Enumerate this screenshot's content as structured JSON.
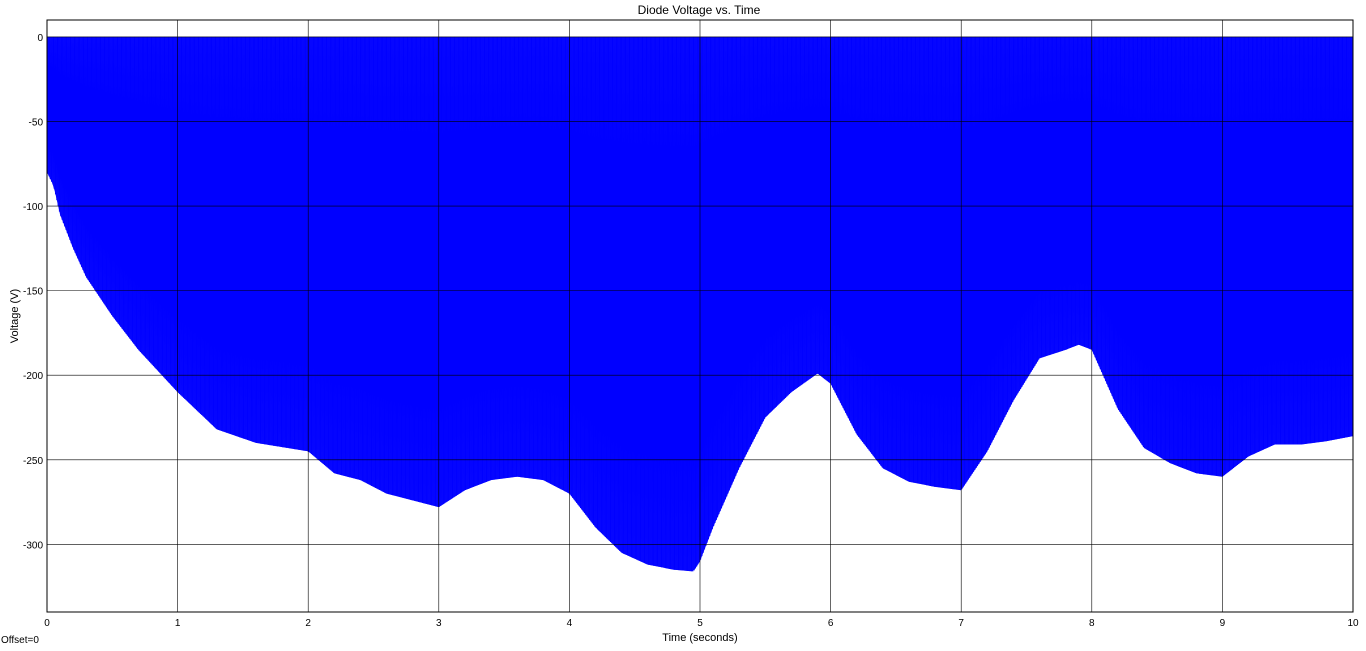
{
  "chart_data": {
    "type": "line",
    "title": "Diode Voltage vs. Time",
    "xlabel": "Time (seconds)",
    "ylabel": "Voltage (V)",
    "xlim": [
      0,
      10
    ],
    "ylim": [
      -340,
      10
    ],
    "xticks": [
      0,
      1,
      2,
      3,
      4,
      5,
      6,
      7,
      8,
      9,
      10
    ],
    "yticks": [
      0,
      -50,
      -100,
      -150,
      -200,
      -250,
      -300
    ],
    "grid": true,
    "offset_label": "Offset=0",
    "series": [
      {
        "color": "#0000ff",
        "description_values": "rapid oscillation between 0 V and a negative envelope",
        "upper_envelope": 0,
        "lower_envelope_x": [
          0,
          0.05,
          0.1,
          0.2,
          0.3,
          0.5,
          0.7,
          1.0,
          1.3,
          1.6,
          2.0,
          2.2,
          2.4,
          2.6,
          2.8,
          3.0,
          3.2,
          3.4,
          3.6,
          3.8,
          4.0,
          4.2,
          4.4,
          4.6,
          4.8,
          4.95,
          5.0,
          5.1,
          5.3,
          5.5,
          5.7,
          5.9,
          6.0,
          6.2,
          6.4,
          6.6,
          6.8,
          7.0,
          7.2,
          7.4,
          7.6,
          7.8,
          7.9,
          8.0,
          8.2,
          8.4,
          8.6,
          8.8,
          9.0,
          9.2,
          9.4,
          9.6,
          9.8,
          10.0
        ],
        "lower_envelope_y": [
          -80,
          -88,
          -105,
          -125,
          -142,
          -165,
          -185,
          -210,
          -232,
          -240,
          -245,
          -258,
          -262,
          -270,
          -274,
          -278,
          -268,
          -262,
          -260,
          -262,
          -270,
          -290,
          -305,
          -312,
          -315,
          -316,
          -310,
          -290,
          -255,
          -225,
          -210,
          -199,
          -205,
          -235,
          -255,
          -263,
          -266,
          -268,
          -245,
          -215,
          -190,
          -185,
          -182,
          -185,
          -220,
          -243,
          -252,
          -258,
          -260,
          -248,
          -241,
          -241,
          -239,
          -236
        ]
      }
    ]
  }
}
